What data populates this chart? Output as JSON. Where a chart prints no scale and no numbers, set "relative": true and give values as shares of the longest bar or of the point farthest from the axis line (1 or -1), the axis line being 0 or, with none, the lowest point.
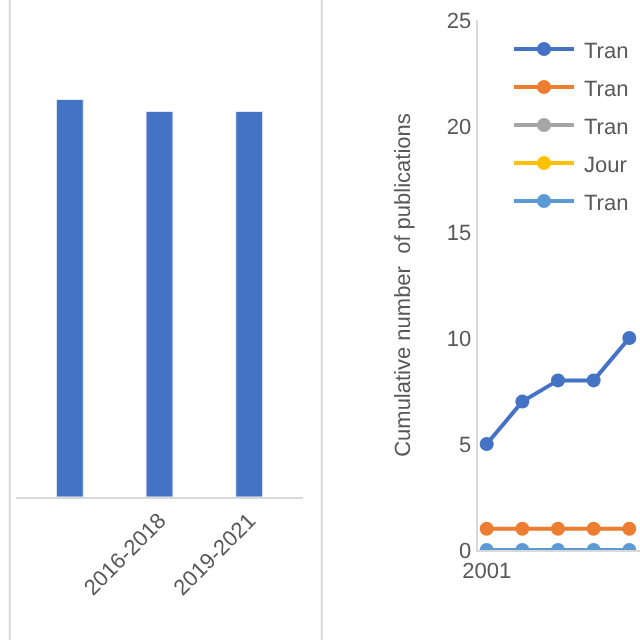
{
  "chart_data": [
    {
      "type": "bar",
      "relative": true,
      "categories": [
        null,
        "2016-2018",
        "2019-2021"
      ],
      "values": [
        1,
        0.97,
        0.97
      ],
      "color": "#4472c4"
    },
    {
      "type": "line",
      "ylabel": "Cumulative number  of publications",
      "categories": [
        "2001",
        null,
        null,
        null,
        null
      ],
      "ylim": [
        0,
        25
      ],
      "yticks": [
        0,
        5,
        10,
        15,
        20,
        25
      ],
      "marker": "circle",
      "legend": "top right",
      "series": [
        {
          "name": "Tran",
          "color": "#4472c4",
          "values": [
            5,
            7,
            8,
            8,
            10
          ]
        },
        {
          "name": "Tran",
          "color": "#ed7d31",
          "values": [
            1,
            1,
            1,
            1,
            1
          ]
        },
        {
          "name": "Tran",
          "color": "#a5a5a5",
          "values": [
            null,
            null,
            null,
            null,
            null
          ]
        },
        {
          "name": "Jour",
          "color": "#ffc000",
          "values": [
            null,
            null,
            null,
            null,
            null
          ]
        },
        {
          "name": "Tran",
          "color": "#5b9bd5",
          "values": [
            0,
            0,
            0,
            0,
            0
          ]
        }
      ]
    }
  ]
}
